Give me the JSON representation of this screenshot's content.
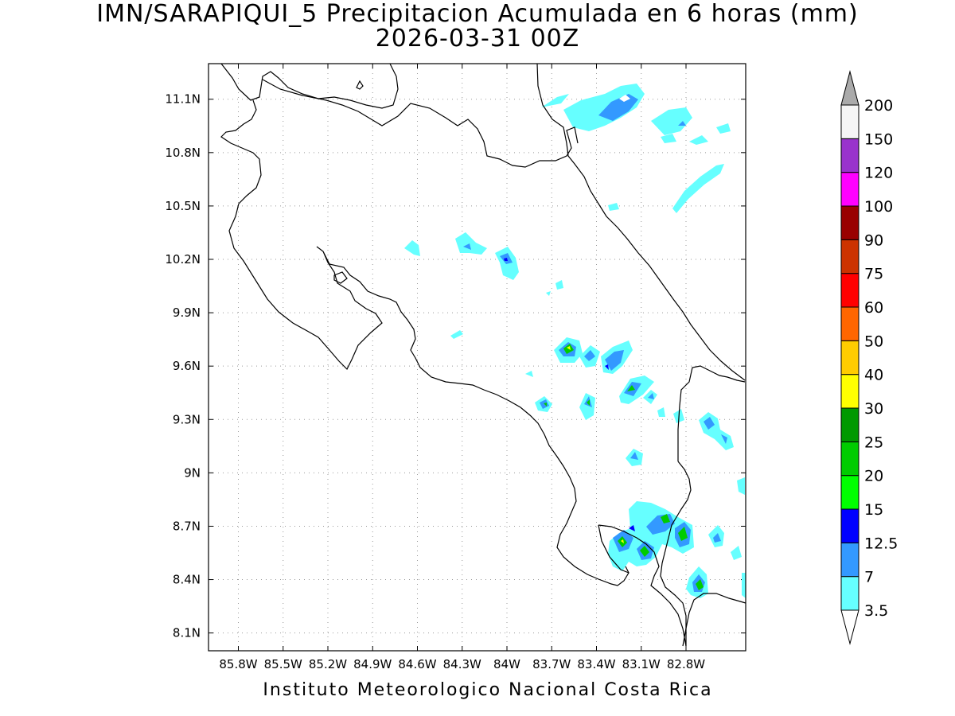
{
  "header": {
    "title": "IMN/SARAPIQUI_5 Precipitacion Acumulada en 6 horas (mm)",
    "subtitle": "2026-03-31 00Z"
  },
  "map": {
    "lon_range": [
      -86.0,
      -82.4
    ],
    "lat_range": [
      8.0,
      11.3
    ],
    "lon_ticks": [
      "85.8W",
      "85.5W",
      "85.2W",
      "84.9W",
      "84.6W",
      "84.3W",
      "84W",
      "83.7W",
      "83.4W",
      "83.1W",
      "82.8W"
    ],
    "lat_ticks": [
      "11.1N",
      "10.8N",
      "10.5N",
      "10.2N",
      "9.9N",
      "9.6N",
      "9.3N",
      "9N",
      "8.7N",
      "8.4N",
      "8.1N"
    ],
    "grid": "dotted"
  },
  "colorbar": {
    "labels": [
      "3.5",
      "7",
      "12.5",
      "15",
      "20",
      "25",
      "30",
      "40",
      "50",
      "60",
      "75",
      "90",
      "100",
      "120",
      "150",
      "200"
    ],
    "colors": [
      "#66ffff",
      "#3399ff",
      "#0000ff",
      "#00ff00",
      "#00cc00",
      "#009900",
      "#ffff00",
      "#ffcc00",
      "#ff6600",
      "#ff0000",
      "#cc3300",
      "#990000",
      "#ff00ff",
      "#9933cc",
      "#f5f5f5",
      "#aaaaaa"
    ]
  },
  "footer": {
    "credit": "Instituto Meteorologico Nacional Costa Rica"
  }
}
